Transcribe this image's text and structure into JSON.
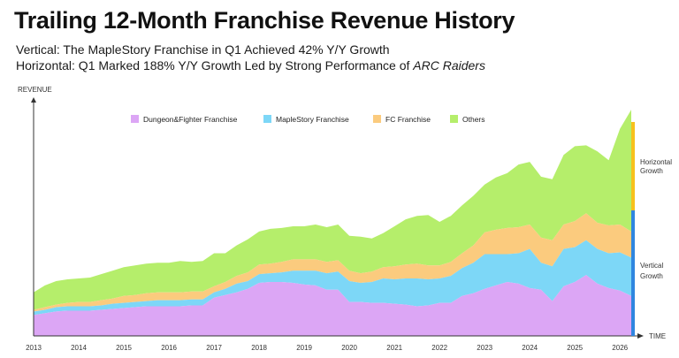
{
  "header": {
    "title": "Trailing 12-Month Franchise Revenue History",
    "subtitle_line1": "Vertical: The MapleStory Franchise in Q1 Achieved 42% Y/Y Growth",
    "subtitle_line2_prefix": "Horizontal: Q1 Marked 188% Y/Y Growth Led by Strong Performance of ",
    "subtitle_line2_game": "ARC Raiders"
  },
  "chart_data": {
    "type": "area",
    "stacked": true,
    "ylabel": "REVENUE",
    "xlabel": "TIME",
    "x_ticks": [
      "2013",
      "2014",
      "2015",
      "2016",
      "2017",
      "2018",
      "2019",
      "2020",
      "2021",
      "2022",
      "2023",
      "2024",
      "2025",
      "2026"
    ],
    "x": [
      2013.0,
      2013.25,
      2013.5,
      2013.75,
      2014.0,
      2014.25,
      2014.5,
      2014.75,
      2015.0,
      2015.25,
      2015.5,
      2015.75,
      2016.0,
      2016.25,
      2016.5,
      2016.75,
      2017.0,
      2017.25,
      2017.5,
      2017.75,
      2018.0,
      2018.25,
      2018.5,
      2018.75,
      2019.0,
      2019.25,
      2019.5,
      2019.75,
      2020.0,
      2020.25,
      2020.5,
      2020.75,
      2021.0,
      2021.25,
      2021.5,
      2021.75,
      2022.0,
      2022.25,
      2022.5,
      2022.75,
      2023.0,
      2023.25,
      2023.5,
      2023.75,
      2024.0,
      2024.25,
      2024.5,
      2024.75,
      2025.0,
      2025.25,
      2025.5,
      2025.75,
      2026.0,
      2026.25
    ],
    "series": [
      {
        "name": "Dungeon&Fighter Franchise",
        "color": "#dca6f5",
        "values": [
          24,
          26,
          28,
          29,
          29,
          29,
          30,
          31,
          32,
          33,
          34,
          34,
          34,
          34,
          35,
          35,
          44,
          47,
          50,
          54,
          61,
          62,
          62,
          61,
          59,
          58,
          53,
          53,
          39,
          39,
          38,
          38,
          37,
          36,
          34,
          35,
          38,
          38,
          46,
          49,
          54,
          58,
          62,
          60,
          55,
          53,
          40,
          57,
          62,
          70,
          60,
          55,
          52,
          46
        ]
      },
      {
        "name": "MapleStory Franchise",
        "color": "#7dd7f7",
        "values": [
          4,
          4,
          5,
          5,
          5,
          5,
          5,
          6,
          6,
          6,
          6,
          7,
          7,
          7,
          7,
          7,
          6,
          7,
          10,
          9,
          10,
          10,
          11,
          14,
          16,
          17,
          19,
          21,
          24,
          22,
          24,
          28,
          28,
          30,
          32,
          30,
          28,
          31,
          32,
          35,
          40,
          36,
          32,
          35,
          45,
          31,
          40,
          43,
          40,
          40,
          40,
          40,
          44,
          44
        ]
      },
      {
        "name": "FC Franchise",
        "color": "#fbcb7e",
        "values": [
          2,
          3,
          3,
          4,
          5,
          5,
          6,
          6,
          8,
          8,
          9,
          9,
          9,
          9,
          9,
          9,
          7,
          8,
          9,
          10,
          11,
          11,
          12,
          13,
          13,
          13,
          13,
          13,
          12,
          11,
          12,
          13,
          15,
          16,
          17,
          16,
          15,
          16,
          17,
          20,
          25,
          28,
          30,
          30,
          28,
          29,
          30,
          28,
          30,
          31,
          30,
          32,
          32,
          30
        ]
      },
      {
        "name": "Others",
        "color": "#b5ee6b",
        "values": [
          20,
          25,
          27,
          27,
          27,
          28,
          30,
          32,
          33,
          34,
          34,
          34,
          34,
          36,
          34,
          35,
          38,
          33,
          35,
          38,
          38,
          40,
          39,
          38,
          38,
          40,
          40,
          41,
          40,
          42,
          38,
          39,
          46,
          52,
          55,
          58,
          50,
          53,
          55,
          57,
          55,
          60,
          63,
          72,
          72,
          70,
          70,
          80,
          86,
          78,
          82,
          75,
          110,
          140
        ]
      }
    ]
  },
  "annotations": {
    "horizontal_line1": "Horizontal",
    "horizontal_line2": "Growth",
    "vertical_line1": "Vertical",
    "vertical_line2": "Growth",
    "horizontal_color": "#f7c01c",
    "vertical_color": "#2f86e0"
  }
}
